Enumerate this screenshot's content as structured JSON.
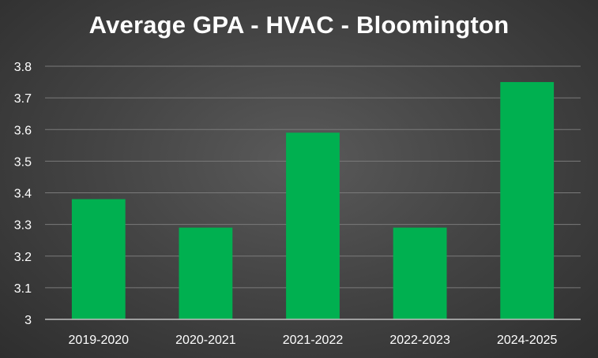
{
  "chart_data": {
    "type": "bar",
    "title": "Average GPA - HVAC - Bloomington",
    "categories": [
      "2019-2020",
      "2020-2021",
      "2021-2022",
      "2022-2023",
      "2024-2025"
    ],
    "values": [
      3.38,
      3.29,
      3.59,
      3.29,
      3.75
    ],
    "ylim": [
      3.0,
      3.8
    ],
    "yticks": [
      "3",
      "3.1",
      "3.2",
      "3.3",
      "3.4",
      "3.5",
      "3.6",
      "3.7",
      "3.8"
    ],
    "grid": true,
    "legend": "none",
    "colors": {
      "bar": "#00b050",
      "grid": "#7a7a7a",
      "axis": "#bfbfbf",
      "text": "#ffffff"
    }
  }
}
